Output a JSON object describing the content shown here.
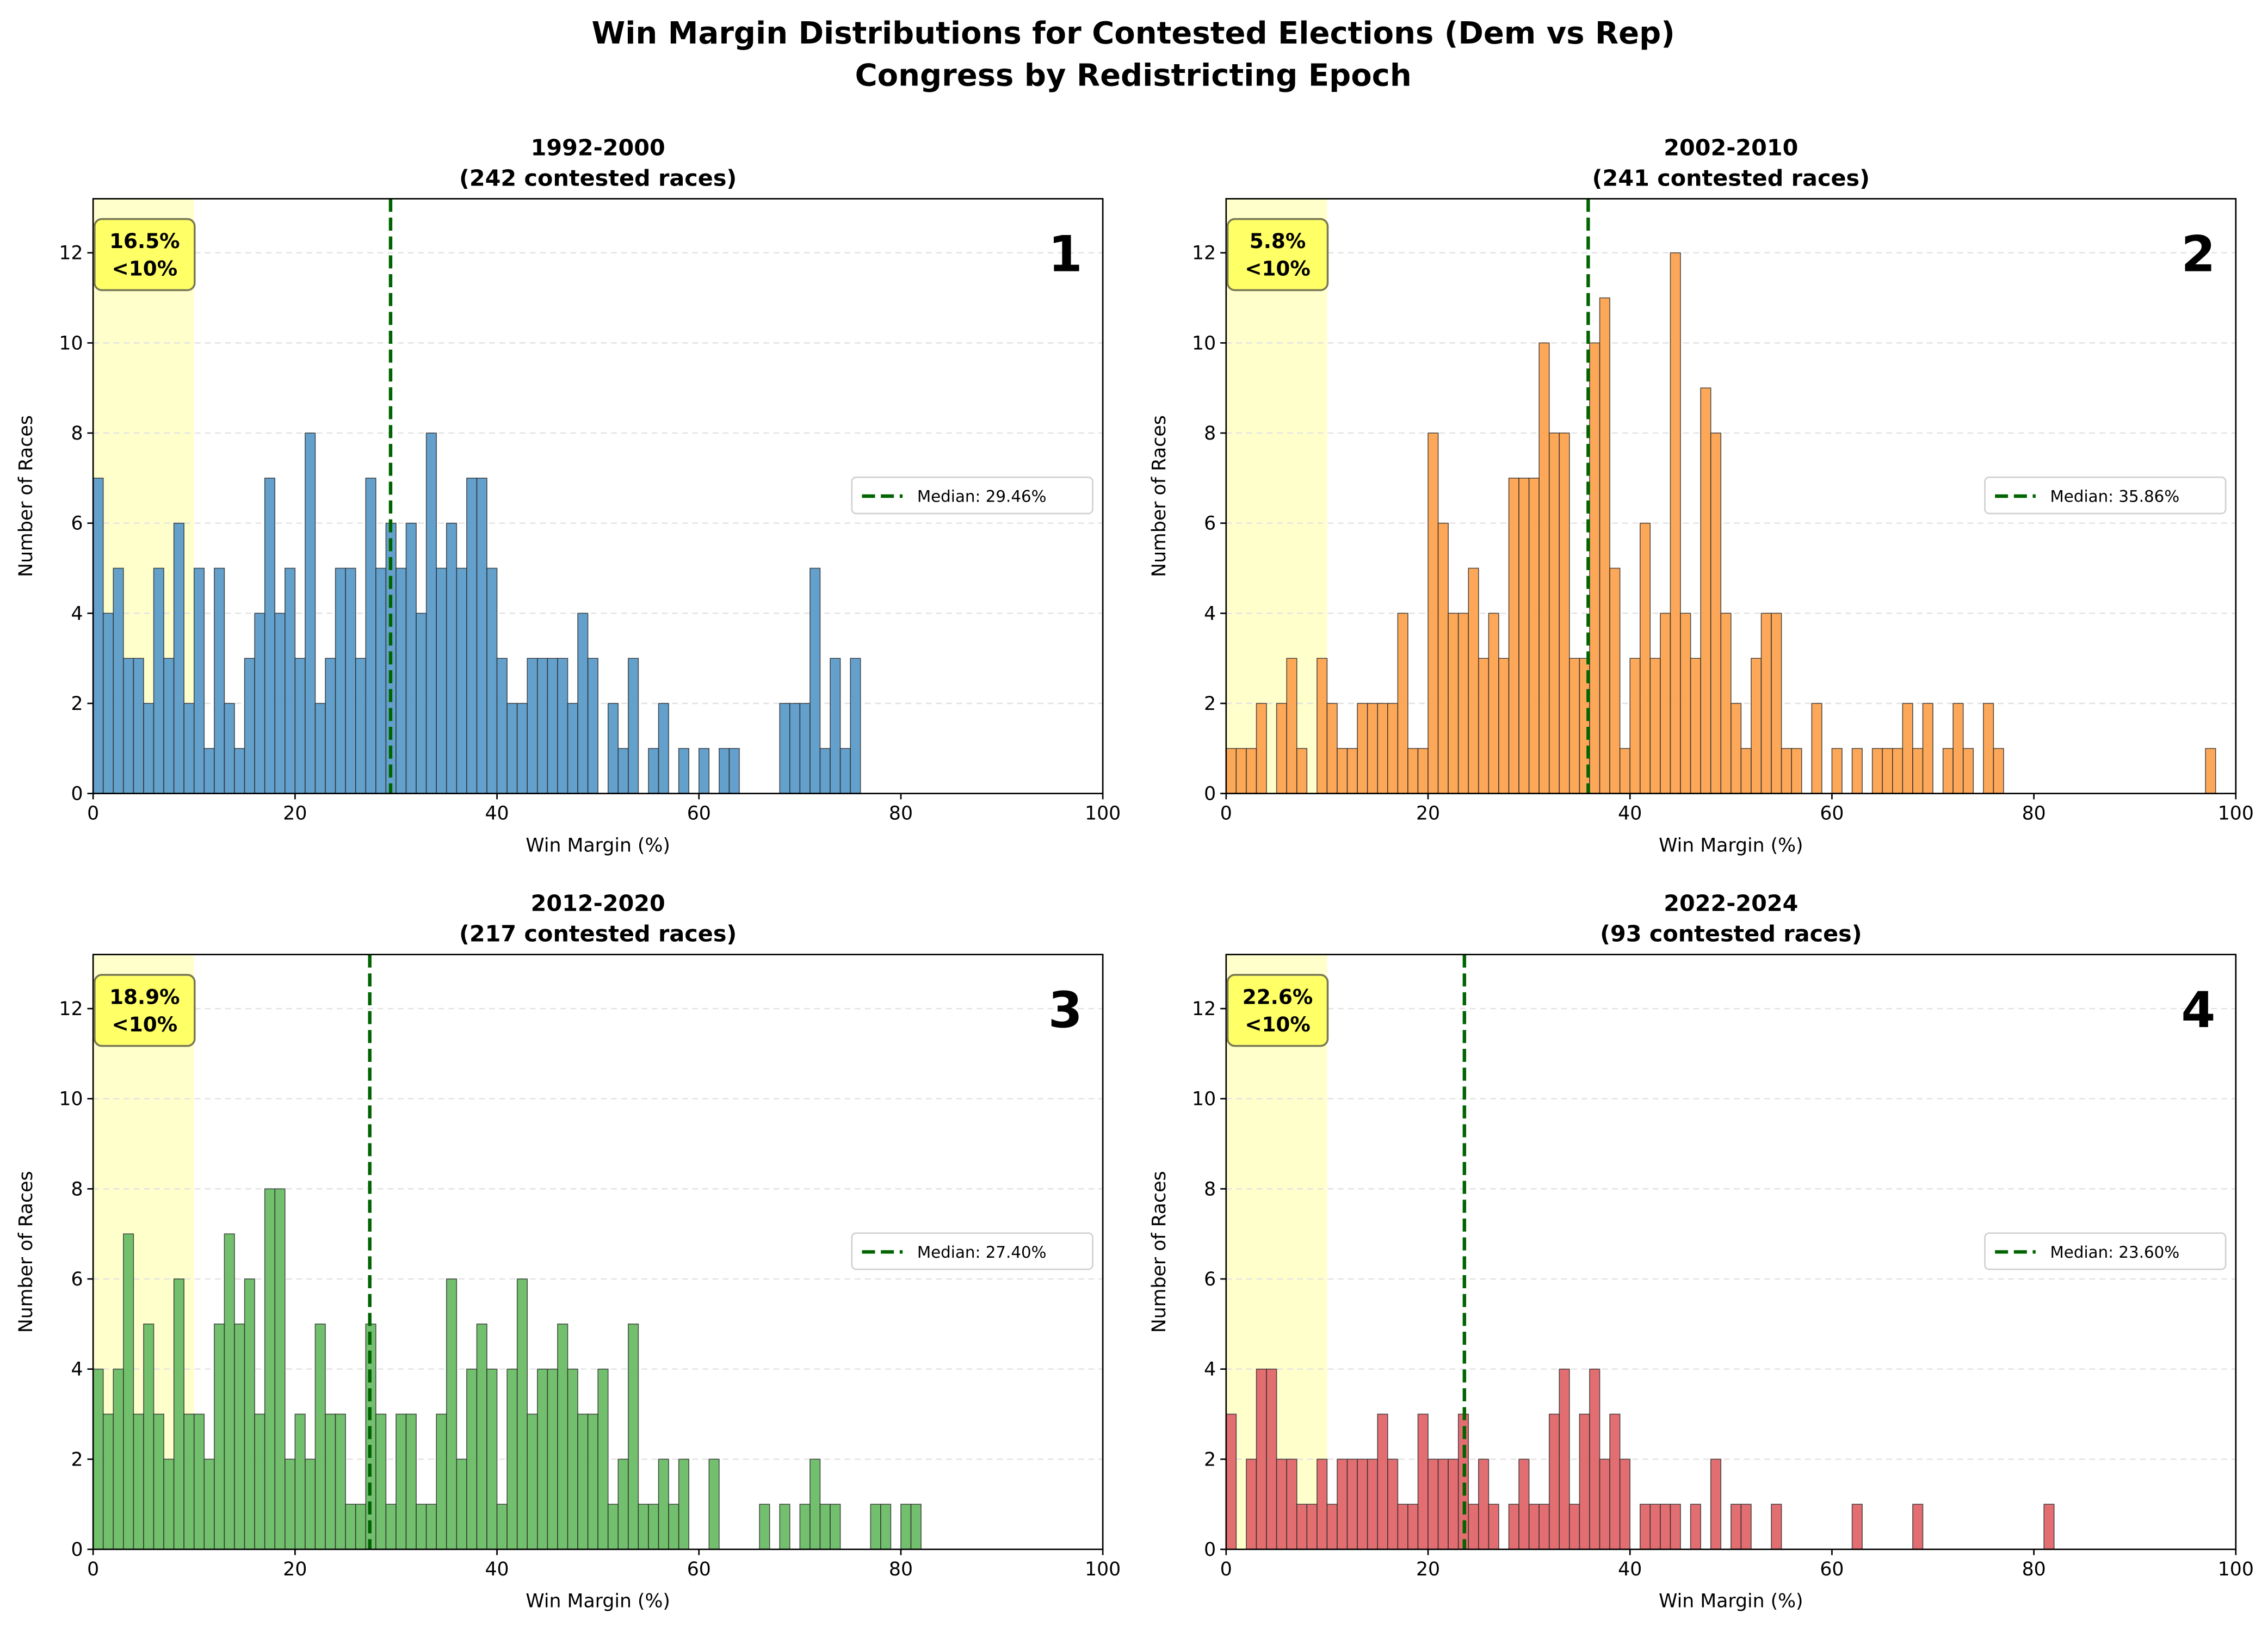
{
  "figure": {
    "title_line1": "Win Margin Distributions for Contested Elections (Dem vs Rep)",
    "title_line2": "Congress by Redistricting Epoch"
  },
  "chart_data": [
    {
      "type": "bar",
      "panel_number": "1",
      "title_line1": "1992-2000",
      "title_line2": "(242 contested races)",
      "xlabel": "Win Margin (%)",
      "ylabel": "Number of Races",
      "xlim": [
        0,
        100
      ],
      "ylim": [
        0,
        13.2
      ],
      "xticks": [
        "0",
        "20",
        "40",
        "60",
        "80",
        "100"
      ],
      "yticks": [
        "0",
        "2",
        "4",
        "6",
        "8",
        "10",
        "12"
      ],
      "grid": "y-dashed",
      "bin_width": 1,
      "bin_start": 0,
      "color": "#5b9bc9",
      "counts": [
        7,
        4,
        5,
        3,
        3,
        2,
        5,
        3,
        6,
        2,
        5,
        1,
        5,
        2,
        1,
        3,
        4,
        7,
        4,
        5,
        3,
        8,
        2,
        3,
        5,
        5,
        3,
        7,
        5,
        6,
        5,
        6,
        4,
        8,
        5,
        6,
        5,
        7,
        7,
        5,
        3,
        2,
        2,
        3,
        3,
        3,
        3,
        2,
        4,
        3,
        0,
        2,
        1,
        3,
        0,
        1,
        2,
        0,
        1,
        0,
        1,
        0,
        1,
        1,
        0,
        0,
        0,
        0,
        2,
        2,
        2,
        5,
        1,
        3,
        1,
        3
      ],
      "median": 29.46,
      "legend": "Median: 29.46%",
      "legend_position": "center-right",
      "highlight_range": [
        0,
        10
      ],
      "annotation_line1": "16.5%",
      "annotation_line2": "<10%"
    },
    {
      "type": "bar",
      "panel_number": "2",
      "title_line1": "2002-2010",
      "title_line2": "(241 contested races)",
      "xlabel": "Win Margin (%)",
      "ylabel": "Number of Races",
      "xlim": [
        0,
        100
      ],
      "ylim": [
        0,
        13.2
      ],
      "xticks": [
        "0",
        "20",
        "40",
        "60",
        "80",
        "100"
      ],
      "yticks": [
        "0",
        "2",
        "4",
        "6",
        "8",
        "10",
        "12"
      ],
      "grid": "y-dashed",
      "bin_width": 1,
      "bin_start": 0,
      "color": "#fda350",
      "counts": [
        1,
        1,
        1,
        2,
        0,
        2,
        3,
        1,
        0,
        3,
        2,
        1,
        1,
        2,
        2,
        2,
        2,
        4,
        1,
        1,
        8,
        6,
        4,
        4,
        5,
        3,
        4,
        3,
        7,
        7,
        7,
        10,
        8,
        8,
        3,
        3,
        10,
        11,
        5,
        1,
        3,
        6,
        3,
        4,
        12,
        4,
        3,
        9,
        8,
        4,
        2,
        1,
        3,
        4,
        4,
        1,
        1,
        0,
        2,
        0,
        1,
        0,
        1,
        0,
        1,
        1,
        1,
        2,
        1,
        2,
        0,
        1,
        2,
        1,
        0,
        2,
        1,
        0,
        0,
        0,
        0,
        0,
        0,
        0,
        0,
        0,
        0,
        0,
        0,
        0,
        0,
        0,
        0,
        0,
        0,
        0,
        0,
        1
      ],
      "median": 35.86,
      "legend": "Median: 35.86%",
      "legend_position": "center-right",
      "highlight_range": [
        0,
        10
      ],
      "annotation_line1": "5.8%",
      "annotation_line2": "<10%"
    },
    {
      "type": "bar",
      "panel_number": "3",
      "title_line1": "2012-2020",
      "title_line2": "(217 contested races)",
      "xlabel": "Win Margin (%)",
      "ylabel": "Number of Races",
      "xlim": [
        0,
        100
      ],
      "ylim": [
        0,
        13.2
      ],
      "xticks": [
        "0",
        "20",
        "40",
        "60",
        "80",
        "100"
      ],
      "yticks": [
        "0",
        "2",
        "4",
        "6",
        "8",
        "10",
        "12"
      ],
      "grid": "y-dashed",
      "bin_width": 1,
      "bin_start": 0,
      "color": "#6abd66",
      "counts": [
        4,
        3,
        4,
        7,
        3,
        5,
        3,
        2,
        6,
        3,
        3,
        2,
        5,
        7,
        5,
        6,
        3,
        8,
        8,
        2,
        3,
        2,
        5,
        3,
        3,
        1,
        1,
        5,
        3,
        1,
        3,
        3,
        1,
        1,
        3,
        6,
        2,
        4,
        5,
        4,
        1,
        4,
        6,
        3,
        4,
        4,
        5,
        4,
        3,
        3,
        4,
        1,
        2,
        5,
        1,
        1,
        2,
        1,
        2,
        0,
        0,
        2,
        0,
        0,
        0,
        0,
        1,
        0,
        1,
        0,
        1,
        2,
        1,
        1,
        0,
        0,
        0,
        1,
        1,
        0,
        1,
        1
      ],
      "median": 27.4,
      "legend": "Median: 27.40%",
      "legend_position": "center-right",
      "highlight_range": [
        0,
        10
      ],
      "annotation_line1": "18.9%",
      "annotation_line2": "<10%"
    },
    {
      "type": "bar",
      "panel_number": "4",
      "title_line1": "2022-2024",
      "title_line2": "(93 contested races)",
      "xlabel": "Win Margin (%)",
      "ylabel": "Number of Races",
      "xlim": [
        0,
        100
      ],
      "ylim": [
        0,
        13.2
      ],
      "xticks": [
        "0",
        "20",
        "40",
        "60",
        "80",
        "100"
      ],
      "yticks": [
        "0",
        "2",
        "4",
        "6",
        "8",
        "10",
        "12"
      ],
      "grid": "y-dashed",
      "bin_width": 1,
      "bin_start": 0,
      "color": "#e0666a",
      "counts": [
        3,
        0,
        2,
        4,
        4,
        2,
        2,
        1,
        1,
        2,
        1,
        2,
        2,
        2,
        2,
        3,
        2,
        1,
        1,
        3,
        2,
        2,
        2,
        3,
        1,
        2,
        1,
        0,
        1,
        2,
        1,
        1,
        3,
        4,
        1,
        3,
        4,
        2,
        3,
        2,
        0,
        1,
        1,
        1,
        1,
        0,
        1,
        0,
        2,
        0,
        1,
        1,
        0,
        0,
        1,
        0,
        0,
        0,
        0,
        0,
        0,
        0,
        1,
        0,
        0,
        0,
        0,
        0,
        1,
        0,
        0,
        0,
        0,
        0,
        0,
        0,
        0,
        0,
        0,
        0,
        0,
        1
      ],
      "median": 23.6,
      "legend": "Median: 23.60%",
      "legend_position": "center-right",
      "highlight_range": [
        0,
        10
      ],
      "annotation_line1": "22.6%",
      "annotation_line2": "<10%"
    }
  ],
  "colors": {
    "median_line": "#006400",
    "highlight": "#ffffcc",
    "annotation_box": "#ffff66"
  }
}
